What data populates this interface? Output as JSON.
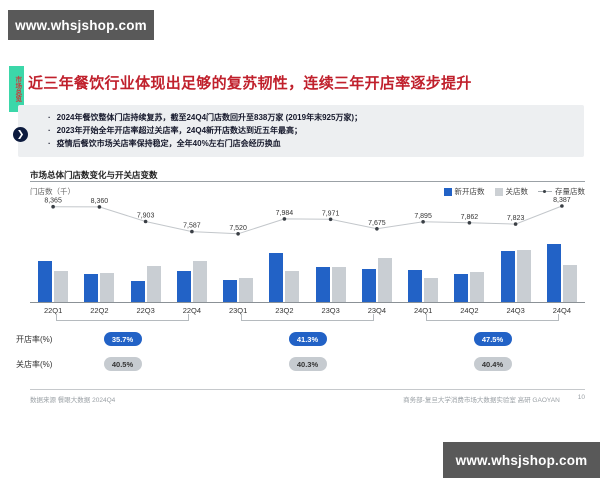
{
  "watermark": {
    "text": "www.whsjshop.com"
  },
  "side_tab": {
    "label": "市场总览"
  },
  "header": {
    "title": "近三年餐饮行业体现出足够的复苏韧性，连续三年开店率逐步提升"
  },
  "bullets": {
    "items": [
      "2024年餐饮整体门店持续复苏，截至24Q4门店数回升至838万家 (2019年末925万家)；",
      "2023年开始全年开店率超过关店率，24Q4新开店数达到近五年最高；",
      "疫情后餐饮市场关店率保持稳定，全年40%左右门店会经历换血"
    ]
  },
  "chart": {
    "section_title": "市场总体门店数变化与开关店变数",
    "y_axis_label": "门店数（千）",
    "legend": {
      "new_opens": "新开店数",
      "closures": "关店数",
      "stock": "存量店数"
    }
  },
  "chart_data": {
    "type": "bar",
    "title": "市场总体门店数变化与开关店变数",
    "ylabel": "门店数（千）",
    "categories": [
      "22Q1",
      "22Q2",
      "22Q3",
      "22Q4",
      "23Q1",
      "23Q2",
      "23Q3",
      "23Q4",
      "24Q1",
      "24Q2",
      "24Q3",
      "24Q4"
    ],
    "series": [
      {
        "name": "新开店数",
        "type": "bar",
        "color": "#2262c6",
        "values": [
          870,
          590,
          430,
          650,
          460,
          1020,
          730,
          690,
          670,
          590,
          1070,
          1210
        ]
      },
      {
        "name": "关店数",
        "type": "bar",
        "color": "#c9ced3",
        "values": [
          650,
          600,
          760,
          860,
          510,
          650,
          740,
          920,
          500,
          620,
          1100,
          780
        ]
      },
      {
        "name": "存量店数",
        "type": "line",
        "color": "#3a3f45",
        "values": [
          8365,
          8360,
          7903,
          7587,
          7520,
          7984,
          7971,
          7675,
          7895,
          7862,
          7823,
          8387
        ]
      }
    ],
    "bar_axis_max": 1300,
    "line_range": [
      7450,
      8450
    ],
    "legend_position": "top-right",
    "grid": false,
    "year_group_spans": [
      [
        0,
        3
      ],
      [
        4,
        7
      ],
      [
        8,
        11
      ]
    ]
  },
  "rates": {
    "open_label": "开店率(%)",
    "close_label": "关店率(%)",
    "open_values": [
      "35.7%",
      "41.3%",
      "47.5%"
    ],
    "close_values": [
      "40.5%",
      "40.3%",
      "40.4%"
    ]
  },
  "footer": {
    "source": "数据来源 餐眼大数据 2024Q4",
    "org": "商务部-复旦大学消费市场大数据实验室  高研 GAOYAN",
    "page": "10"
  },
  "colors": {
    "title_red": "#c0202c",
    "tab_teal": "#3bd7a9",
    "bar_blue": "#2262c6",
    "bar_gray": "#c9ced3",
    "watermark_bg": "#595959"
  }
}
